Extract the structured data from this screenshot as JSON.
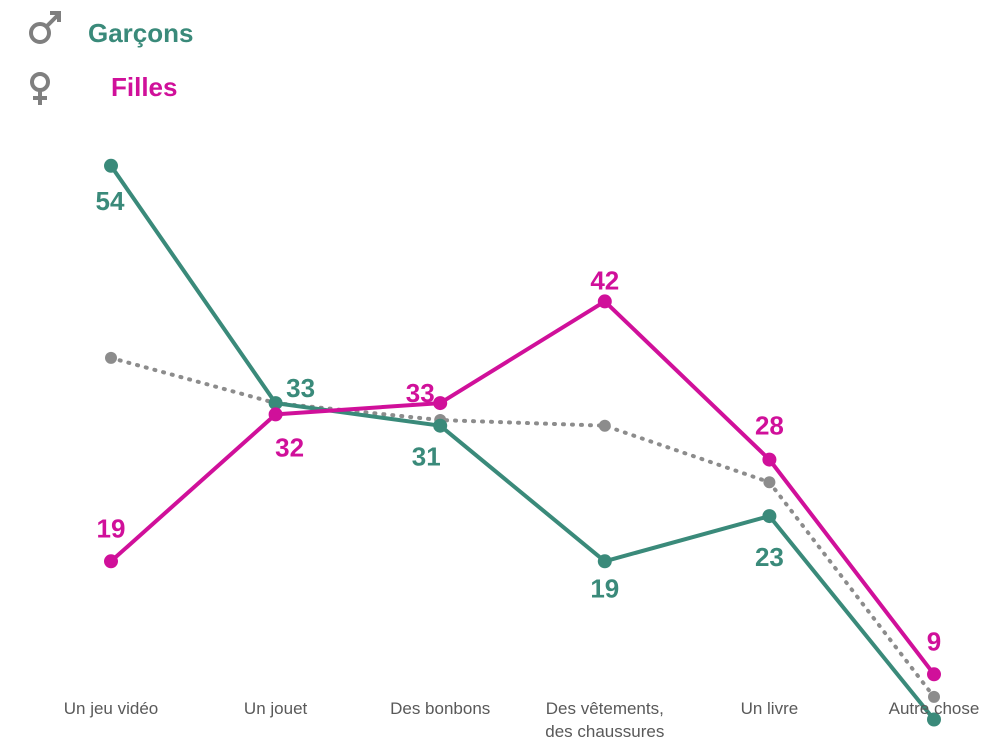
{
  "chart_data": {
    "type": "line",
    "categories": [
      [
        "Un jeu vidéo"
      ],
      [
        "Un jouet"
      ],
      [
        "Des bonbons"
      ],
      [
        "Des vêtements,",
        "des chaussures"
      ],
      [
        "Un livre"
      ],
      [
        "Autre chose"
      ]
    ],
    "series": [
      {
        "name": "Garçons",
        "values": [
          54,
          33,
          31,
          19,
          23,
          5
        ],
        "color": "#3a8a7a",
        "icon": "male-symbol-icon",
        "style": "solid",
        "labels": true
      },
      {
        "name": "Filles",
        "values": [
          19,
          32,
          33,
          42,
          28,
          9
        ],
        "color": "#d0109a",
        "icon": "female-symbol-icon",
        "style": "solid",
        "labels": true
      },
      {
        "name": "",
        "values": [
          37,
          33,
          31.5,
          31,
          26,
          7
        ],
        "color": "#8c8c8c",
        "style": "dotted",
        "labels": false
      }
    ],
    "icon_color": "#7f7f7f",
    "ylim": [
      0,
      60
    ],
    "grid": false,
    "legend": "top-left"
  }
}
